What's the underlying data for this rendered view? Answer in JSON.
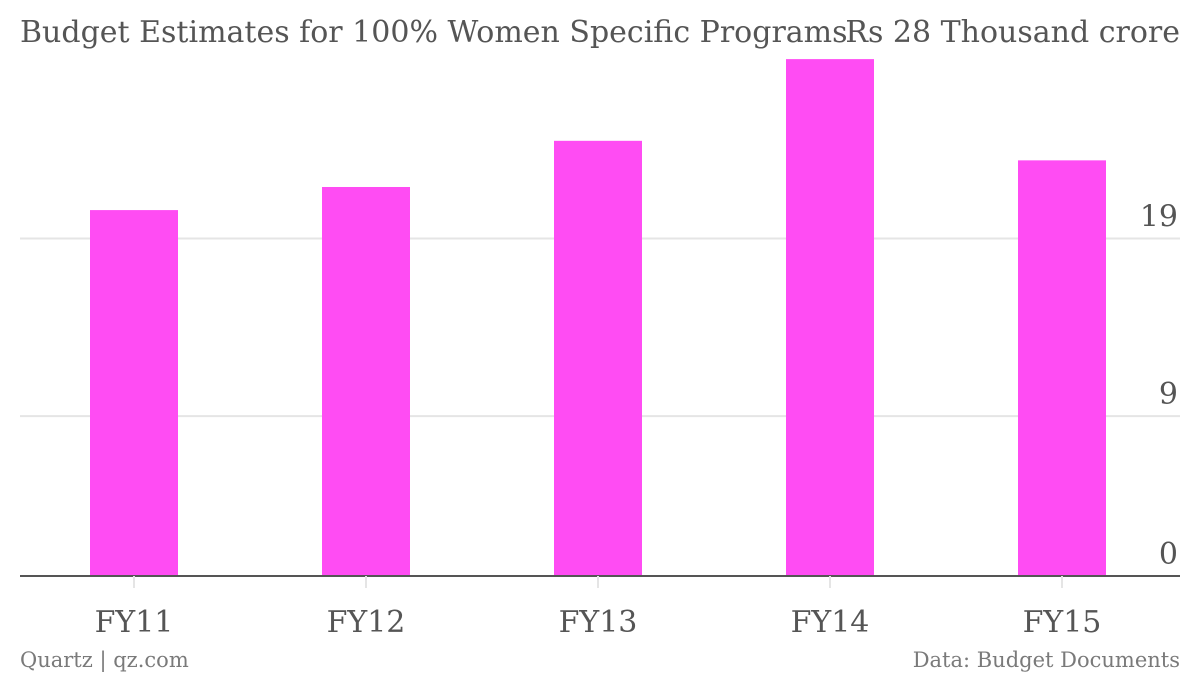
{
  "chart_data": {
    "type": "bar",
    "title": "Budget Estimates for 100% Women Specific Programs",
    "ylabel": "Rs 28 Thousand crore",
    "xlabel": "",
    "categories": [
      "FY11",
      "FY12",
      "FY13",
      "FY14",
      "FY15"
    ],
    "values": [
      20.6,
      21.9,
      24.5,
      29.1,
      23.4
    ],
    "yticks": [
      0,
      9,
      19
    ],
    "ylim": [
      0,
      29.5
    ],
    "grid": true,
    "colors": {
      "bar": "#ff4cf3",
      "grid": "#e5e5e5",
      "axis": "#555555",
      "text": "#555555",
      "footer": "#7a7a7a"
    }
  },
  "footer": {
    "left": "Quartz | qz.com",
    "right": "Data: Budget Documents"
  }
}
